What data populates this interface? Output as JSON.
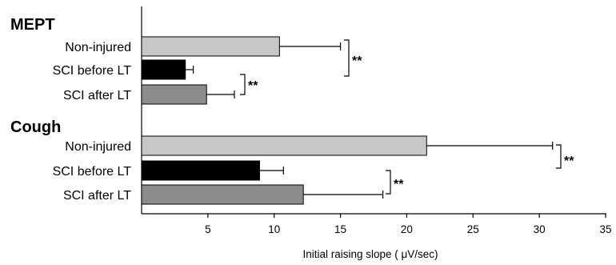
{
  "chart_data": {
    "type": "bar",
    "orientation": "horizontal",
    "xlabel": "Initial raising slope ( μV/sec)",
    "xlim": [
      0,
      35
    ],
    "x_ticks": [
      5,
      10,
      15,
      20,
      25,
      30,
      35
    ],
    "grid": false,
    "groups": [
      {
        "title": "MEPT",
        "bars": [
          {
            "label": "Non-injured",
            "value": 10.4,
            "error": 4.6,
            "color": "#c8c8c8"
          },
          {
            "label": "SCI before LT",
            "value": 3.3,
            "error": 0.6,
            "color": "#000000"
          },
          {
            "label": "SCI after LT",
            "value": 4.9,
            "error": 2.1,
            "color": "#8c8c8c"
          }
        ],
        "significance": [
          {
            "from": 0,
            "to": 1,
            "label": "**"
          },
          {
            "from": 1,
            "to": 2,
            "label": "**"
          }
        ]
      },
      {
        "title": "Cough",
        "bars": [
          {
            "label": "Non-injured",
            "value": 21.5,
            "error": 9.5,
            "color": "#c8c8c8"
          },
          {
            "label": "SCI before LT",
            "value": 8.9,
            "error": 1.8,
            "color": "#000000"
          },
          {
            "label": "SCI after LT",
            "value": 12.2,
            "error": 6.0,
            "color": "#8c8c8c"
          }
        ],
        "significance": [
          {
            "from": 0,
            "to": 1,
            "label": "**"
          },
          {
            "from": 1,
            "to": 2,
            "label": "**"
          }
        ]
      }
    ]
  }
}
